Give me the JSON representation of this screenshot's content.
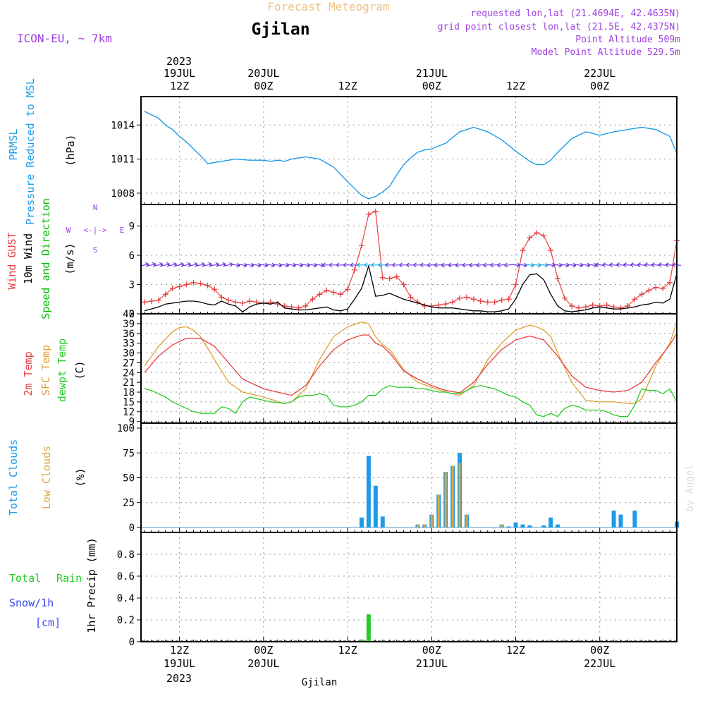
{
  "header": {
    "meteogram_label": "Forecast Meteogram",
    "location": "Gjilan",
    "model": "ICON-EU, ~ 7km",
    "requested": "requested lon,lat (21.4694E, 42.4635N)",
    "grid_point": "grid point closest lon,lat (21.5E, 42.4375N)",
    "point_altitude": "Point Altitude 509m",
    "model_altitude": "Model Point Altitude 529.5m"
  },
  "watermark": "by Angel",
  "footer_location": "Gjilan",
  "time_axis": {
    "top_year": "2023",
    "bottom_year": "2023",
    "labels": [
      {
        "t": 12,
        "line1": "12Z",
        "line2": "19JUL",
        "line3": "2023"
      },
      {
        "t": 24,
        "line1": "00Z",
        "line2": "20JUL",
        "line3": ""
      },
      {
        "t": 36,
        "line1": "12Z",
        "line2": "",
        "line3": ""
      },
      {
        "t": 48,
        "line1": "00Z",
        "line2": "21JUL",
        "line3": ""
      },
      {
        "t": 60,
        "line1": "12Z",
        "line2": "",
        "line3": ""
      },
      {
        "t": 72,
        "line1": "00Z",
        "line2": "22JUL",
        "line3": ""
      }
    ],
    "start_hour": 6.5,
    "end_hour": 83
  },
  "colors": {
    "pressure": "#1e9be8",
    "gust": "#e84040",
    "wind": "#000000",
    "wind_label": "#00bb00",
    "t2m": "#e84040",
    "sfc": "#e0a030",
    "dewpt": "#22cc22",
    "total_clouds": "#1e9be8",
    "low_clouds": "#d9a840",
    "rain": "#22cc22",
    "snow": "#3344ee",
    "purple": "#a040e0",
    "title_orange": "#f0c080"
  },
  "chart_data": [
    {
      "type": "line",
      "title": "PRMSL Pressure Reduced to MSL",
      "panel_labels": [
        "PRMSL",
        "Pressure Reduced to MSL"
      ],
      "ylabel": "(hPa)",
      "yticks": [
        1008,
        1011,
        1014
      ],
      "ylim": [
        1007,
        1016.5
      ],
      "series": [
        {
          "name": "PRMSL",
          "x": [
            7,
            9,
            10,
            11,
            12,
            13,
            14,
            15,
            16,
            18,
            20,
            22,
            24,
            25,
            26,
            27,
            28,
            30,
            32,
            34,
            36,
            38,
            39,
            40,
            41,
            42,
            43,
            44,
            45,
            46,
            47,
            48,
            50,
            52,
            54,
            56,
            58,
            60,
            62,
            63,
            64,
            65,
            66,
            68,
            70,
            72,
            74,
            76,
            78,
            80,
            82,
            83
          ],
          "values": [
            1015.2,
            1014.6,
            1014.0,
            1013.6,
            1013.0,
            1012.5,
            1011.9,
            1011.3,
            1010.6,
            1010.8,
            1011.0,
            1010.9,
            1010.9,
            1010.8,
            1010.9,
            1010.8,
            1011.0,
            1011.2,
            1011.0,
            1010.3,
            1009.0,
            1007.8,
            1007.5,
            1007.7,
            1008.1,
            1008.6,
            1009.6,
            1010.5,
            1011.1,
            1011.6,
            1011.8,
            1011.9,
            1012.4,
            1013.4,
            1013.8,
            1013.4,
            1012.7,
            1011.7,
            1010.8,
            1010.5,
            1010.5,
            1010.9,
            1011.6,
            1012.8,
            1013.4,
            1013.1,
            1013.4,
            1013.6,
            1013.8,
            1013.6,
            1013.0,
            1011.5
          ]
        }
      ]
    },
    {
      "type": "line",
      "title": "Wind GUST 10m Wind Speed and Direction",
      "panel_labels": [
        "Wind GUST",
        "10m Wind",
        "Speed and Direction"
      ],
      "ylabel": "(m/s)",
      "compass": {
        "n": "N",
        "s": "S",
        "w": "W",
        "e": "E",
        "glyph": "<-|->"
      },
      "yticks": [
        0,
        3,
        6,
        9
      ],
      "ylim": [
        0,
        11.2
      ],
      "series": [
        {
          "name": "Wind GUST",
          "x": [
            7,
            8,
            9,
            10,
            11,
            12,
            13,
            14,
            15,
            16,
            17,
            18,
            19,
            20,
            21,
            22,
            23,
            24,
            25,
            26,
            27,
            28,
            29,
            30,
            31,
            32,
            33,
            34,
            35,
            36,
            37,
            38,
            39,
            40,
            41,
            42,
            43,
            44,
            45,
            46,
            47,
            48,
            49,
            50,
            51,
            52,
            53,
            54,
            55,
            56,
            57,
            58,
            59,
            60,
            61,
            62,
            63,
            64,
            65,
            66,
            67,
            68,
            69,
            70,
            71,
            72,
            73,
            74,
            75,
            76,
            77,
            78,
            79,
            80,
            81,
            82,
            83
          ],
          "values": [
            1.2,
            1.3,
            1.4,
            2.0,
            2.6,
            2.8,
            3.0,
            3.2,
            3.1,
            2.9,
            2.5,
            1.7,
            1.4,
            1.2,
            1.1,
            1.3,
            1.2,
            1.1,
            1.2,
            1.0,
            0.8,
            0.7,
            0.6,
            0.8,
            1.5,
            2.0,
            2.4,
            2.2,
            2.0,
            2.5,
            4.5,
            7.0,
            10.2,
            10.5,
            3.7,
            3.6,
            3.8,
            3.0,
            1.7,
            1.2,
            0.8,
            0.8,
            0.9,
            1.0,
            1.2,
            1.6,
            1.7,
            1.5,
            1.3,
            1.2,
            1.2,
            1.4,
            1.5,
            3.0,
            6.5,
            7.8,
            8.3,
            8.0,
            6.5,
            3.6,
            1.6,
            0.8,
            0.6,
            0.7,
            0.9,
            0.8,
            0.9,
            0.7,
            0.6,
            0.8,
            1.5,
            2.0,
            2.4,
            2.7,
            2.6,
            3.2,
            7.5
          ]
        },
        {
          "name": "10m Wind",
          "x": [
            7,
            8,
            9,
            10,
            11,
            12,
            13,
            14,
            15,
            16,
            17,
            18,
            19,
            20,
            21,
            22,
            23,
            24,
            25,
            26,
            27,
            28,
            29,
            30,
            31,
            32,
            33,
            34,
            35,
            36,
            37,
            38,
            39,
            40,
            41,
            42,
            43,
            44,
            45,
            46,
            47,
            48,
            49,
            50,
            51,
            52,
            53,
            54,
            55,
            56,
            57,
            58,
            59,
            60,
            61,
            62,
            63,
            64,
            65,
            66,
            67,
            68,
            69,
            70,
            71,
            72,
            73,
            74,
            75,
            76,
            77,
            78,
            79,
            80,
            81,
            82,
            83
          ],
          "values": [
            0.3,
            0.5,
            0.7,
            1.0,
            1.1,
            1.2,
            1.3,
            1.3,
            1.2,
            1.0,
            0.9,
            1.3,
            1.0,
            0.8,
            0.2,
            0.7,
            1.0,
            1.1,
            1.0,
            1.2,
            0.6,
            0.5,
            0.4,
            0.4,
            0.5,
            0.6,
            0.7,
            0.4,
            0.3,
            0.5,
            1.5,
            2.6,
            4.9,
            1.8,
            1.9,
            2.1,
            1.8,
            1.5,
            1.3,
            1.1,
            0.9,
            0.7,
            0.6,
            0.6,
            0.6,
            0.5,
            0.4,
            0.3,
            0.3,
            0.2,
            0.2,
            0.3,
            0.5,
            1.5,
            3.0,
            4.0,
            4.1,
            3.5,
            2.0,
            0.8,
            0.3,
            0.2,
            0.3,
            0.4,
            0.6,
            0.7,
            0.6,
            0.5,
            0.5,
            0.6,
            0.7,
            0.9,
            1.0,
            1.2,
            1.1,
            1.5,
            4.1
          ]
        }
      ],
      "direction_arrows": {
        "level": 5.0
      }
    },
    {
      "type": "line",
      "title": "2m Temp SFC Temp dewpt Temp",
      "panel_labels": [
        "2m Temp",
        "SFC Temp",
        "dewpt Temp"
      ],
      "ylabel": "(C)",
      "yticks": [
        9,
        12,
        15,
        18,
        21,
        24,
        27,
        30,
        33,
        36,
        39,
        42
      ],
      "ylim": [
        8.5,
        42
      ],
      "series": [
        {
          "name": "2m Temp",
          "x": [
            7,
            9,
            11,
            13,
            15,
            17,
            19,
            21,
            24,
            27,
            28,
            30,
            32,
            34,
            36,
            38,
            39,
            40,
            41,
            42,
            44,
            46,
            48,
            50,
            52,
            54,
            56,
            58,
            60,
            62,
            64,
            66,
            68,
            70,
            72,
            74,
            76,
            78,
            80,
            82,
            83
          ],
          "values": [
            24,
            29,
            32.5,
            34.5,
            34.5,
            32,
            27,
            22,
            19,
            17.5,
            17,
            20,
            26,
            31,
            34,
            35.5,
            35.5,
            33,
            32,
            30,
            24.5,
            22,
            20,
            18.5,
            17.8,
            21,
            26.5,
            31,
            34,
            35.2,
            34,
            29,
            23,
            19.5,
            18.5,
            18,
            18.5,
            21,
            27,
            32.5,
            36
          ]
        },
        {
          "name": "SFC Temp",
          "x": [
            7,
            9,
            11,
            12,
            13,
            14,
            15,
            17,
            19,
            21,
            24,
            27,
            28,
            30,
            32,
            34,
            36,
            38,
            39,
            40,
            41,
            42,
            44,
            46,
            48,
            50,
            52,
            54,
            56,
            58,
            60,
            62,
            63,
            64,
            65,
            66,
            68,
            70,
            72,
            74,
            76,
            77,
            78,
            80,
            82,
            83
          ],
          "values": [
            26,
            32,
            36.5,
            37.8,
            38,
            37,
            35,
            28,
            21,
            18,
            16.5,
            14.5,
            15,
            19,
            28,
            35,
            38,
            39.5,
            39,
            35,
            32.5,
            31,
            25,
            21,
            19.5,
            18,
            17,
            20,
            28,
            33,
            37,
            38.5,
            38,
            37,
            35,
            30,
            21,
            15.5,
            15,
            15,
            14.5,
            14.5,
            16,
            26,
            33,
            39.5
          ]
        },
        {
          "name": "dewpt Temp",
          "x": [
            7,
            8,
            9,
            10,
            11,
            12,
            13,
            14,
            15,
            16,
            17,
            18,
            19,
            20,
            21,
            22,
            23,
            24,
            25,
            26,
            27,
            28,
            29,
            30,
            31,
            32,
            33,
            34,
            35,
            36,
            37,
            38,
            39,
            40,
            41,
            42,
            43,
            44,
            45,
            46,
            47,
            48,
            49,
            50,
            51,
            52,
            53,
            54,
            55,
            56,
            57,
            58,
            59,
            60,
            61,
            62,
            63,
            64,
            65,
            66,
            67,
            68,
            69,
            70,
            71,
            72,
            73,
            74,
            75,
            76,
            77,
            78,
            79,
            80,
            81,
            82,
            83
          ],
          "values": [
            19,
            18.5,
            17.5,
            16.5,
            15,
            14,
            13,
            12,
            11.5,
            11.5,
            11.5,
            13.5,
            13,
            11.5,
            15,
            16.5,
            16,
            15.5,
            15,
            14.8,
            14.5,
            15,
            16.5,
            17,
            17,
            17.5,
            17,
            14,
            13.5,
            13.5,
            14,
            15,
            17,
            17,
            19,
            20,
            19.5,
            19.5,
            19.5,
            19,
            19,
            18.5,
            18,
            18,
            17.5,
            17.5,
            18.5,
            19.5,
            20,
            19.5,
            19,
            18,
            17,
            16.5,
            15,
            14,
            11,
            10.5,
            11.5,
            10.5,
            13,
            14,
            13.5,
            12.5,
            12.5,
            12.5,
            12,
            11,
            10.5,
            10.5,
            14,
            19,
            18.5,
            18.5,
            17.5,
            19,
            15
          ]
        }
      ]
    },
    {
      "type": "bar",
      "title": "Total Clouds Low Clouds",
      "panel_labels": [
        "Total Clouds",
        "Low Clouds"
      ],
      "ylabel": "(%)",
      "yticks": [
        0,
        25,
        50,
        75,
        100
      ],
      "ylim": [
        -5,
        105
      ],
      "x": [
        38,
        39,
        40,
        41,
        46,
        47,
        48,
        49,
        50,
        51,
        52,
        53,
        54,
        58,
        59,
        60,
        61,
        62,
        63,
        64,
        65,
        66,
        67,
        68,
        74,
        75,
        76,
        77,
        78,
        83
      ],
      "series": [
        {
          "name": "Total Clouds",
          "values": [
            10,
            72,
            42,
            11,
            3,
            3,
            13,
            33,
            56,
            62,
            75,
            13,
            0,
            3,
            1,
            5,
            3,
            2,
            0,
            2,
            10,
            3,
            0,
            0,
            17,
            13,
            0,
            17,
            0,
            6
          ]
        },
        {
          "name": "Low Clouds",
          "values": [
            0,
            0,
            0,
            0,
            3,
            3,
            13,
            33,
            56,
            62,
            65,
            13,
            0,
            3,
            0,
            0,
            0,
            0,
            0,
            0,
            0,
            0,
            0,
            0,
            0,
            0,
            0,
            0,
            0,
            0
          ]
        }
      ]
    },
    {
      "type": "bar",
      "title": "1hr Precip (mm)",
      "panel_labels": [
        "Total",
        "Rain",
        "Snow/1h",
        "[cm]"
      ],
      "ylabel": "1hr Precip (mm)",
      "yticks": [
        0,
        0.2,
        0.4,
        0.6,
        0.8
      ],
      "ytick_labels": [
        "0",
        "0.2",
        "0.4",
        "0.6",
        "0.8"
      ],
      "ylim": [
        0,
        1.0
      ],
      "x": [
        38,
        39
      ],
      "series": [
        {
          "name": "Total Rain",
          "values": [
            0.02,
            0.25
          ]
        },
        {
          "name": "Snow/1h",
          "values": [
            0,
            0
          ]
        }
      ]
    }
  ]
}
